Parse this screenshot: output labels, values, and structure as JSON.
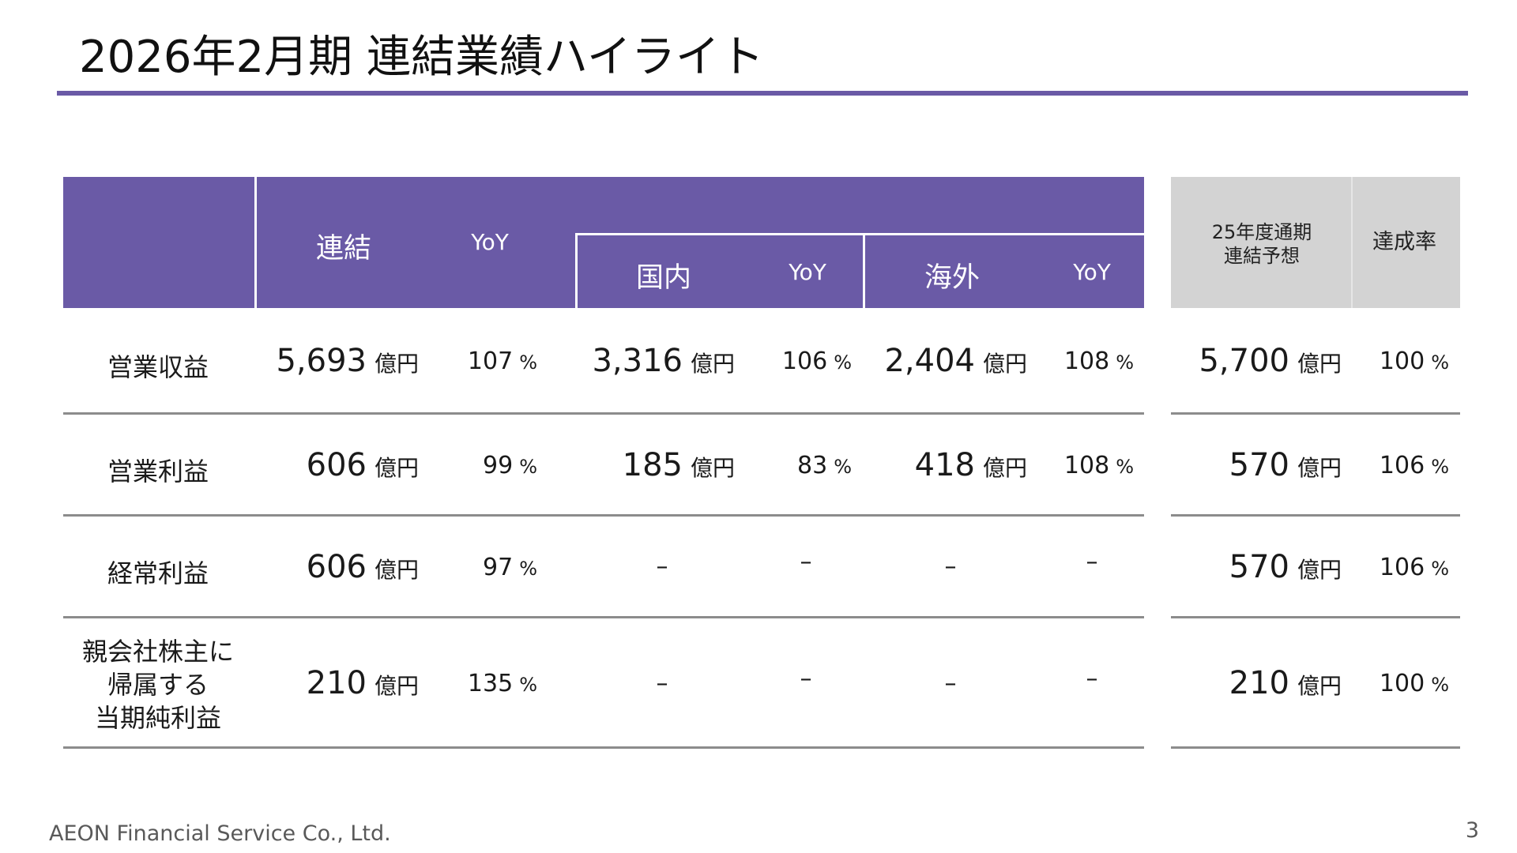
{
  "title": "2026年2月期 連結業績ハイライト",
  "header": {
    "consolidated": "連結",
    "yoy": "YoY",
    "domestic": "国内",
    "overseas": "海外",
    "forecast_line1": "25年度通期",
    "forecast_line2": "連結予想",
    "achievement": "達成率"
  },
  "units": {
    "oku_yen": "億円",
    "percent": "%"
  },
  "dash": "–",
  "rows": [
    {
      "label": "営業収益",
      "cons": "5,693",
      "cons_yoy": "107",
      "dom": "3,316",
      "dom_yoy": "106",
      "ovs": "2,404",
      "ovs_yoy": "108",
      "fc": "5,700",
      "ach": "100"
    },
    {
      "label": "営業利益",
      "cons": "606",
      "cons_yoy": "99",
      "dom": "185",
      "dom_yoy": "83",
      "ovs": "418",
      "ovs_yoy": "108",
      "fc": "570",
      "ach": "106"
    },
    {
      "label": "経常利益",
      "cons": "606",
      "cons_yoy": "97",
      "dom": "–",
      "dom_yoy": "–",
      "ovs": "–",
      "ovs_yoy": "–",
      "fc": "570",
      "ach": "106"
    },
    {
      "label_line1": "親会社株主に",
      "label_line2": "帰属する",
      "label_line3": "当期純利益",
      "cons": "210",
      "cons_yoy": "135",
      "dom": "–",
      "dom_yoy": "–",
      "ovs": "–",
      "ovs_yoy": "–",
      "fc": "210",
      "ach": "100"
    }
  ],
  "footer": "AEON Financial Service Co., Ltd.",
  "page_number": "3",
  "colors": {
    "accent": "#6a5aa6",
    "forecast_header": "#d3d3d3",
    "separator": "#8c8c8c"
  }
}
